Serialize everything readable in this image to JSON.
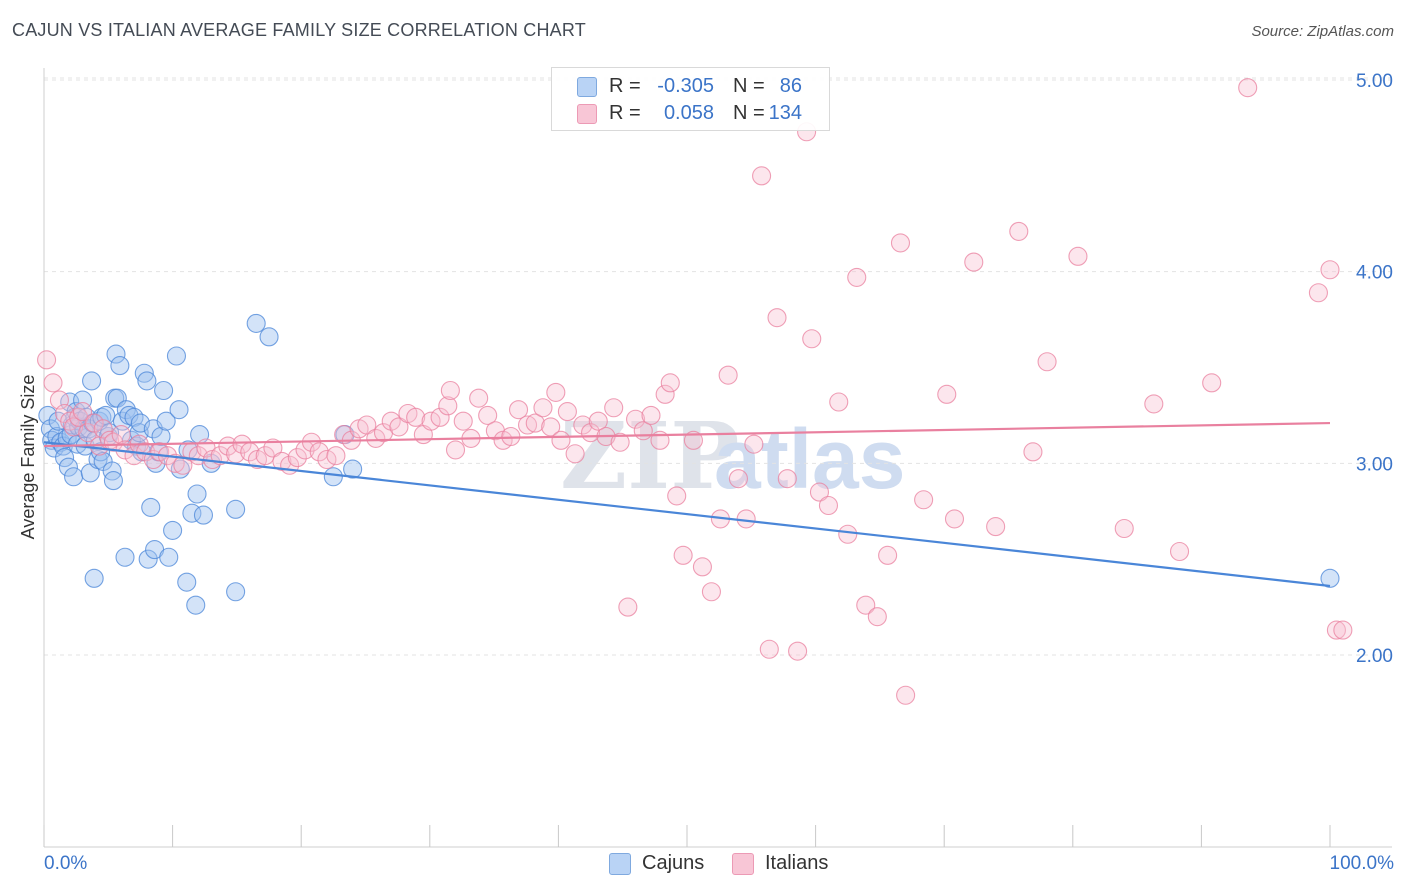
{
  "title": "CAJUN VS ITALIAN AVERAGE FAMILY SIZE CORRELATION CHART",
  "source": "Source: ZipAtlas.com",
  "watermark": {
    "zip": "ZIP",
    "atlas": "atlas"
  },
  "legend": {
    "r_label": "R =",
    "n_label": "N =",
    "rows": [
      {
        "name": "Cajuns",
        "r": "-0.305",
        "n": "86",
        "color": "#4a86d8"
      },
      {
        "name": "Italians",
        "r": "0.058",
        "n": "134",
        "color": "#e9809f"
      }
    ]
  },
  "bottom_legend": {
    "cajuns": "Cajuns",
    "italians": "Italians"
  },
  "chart_data": {
    "type": "scatter",
    "title": "CAJUN VS ITALIAN AVERAGE FAMILY SIZE CORRELATION CHART",
    "xlabel": "",
    "ylabel": "Average Family Size",
    "xlim": [
      0,
      100
    ],
    "ylim": [
      1.0,
      5.2
    ],
    "x_tick_labels": {
      "min": "0.0%",
      "max": "100.0%"
    },
    "y_ticks": [
      {
        "value": 2.0,
        "label": "2.00"
      },
      {
        "value": 3.0,
        "label": "3.00"
      },
      {
        "value": 4.0,
        "label": "4.00"
      },
      {
        "value": 5.0,
        "label": "5.00"
      }
    ],
    "series": [
      {
        "name": "Cajuns",
        "color": "#4a86d8",
        "fill": "rgba(157,194,240,0.45)",
        "trend": {
          "x": [
            0,
            100
          ],
          "y": [
            3.11,
            2.36
          ]
        },
        "points": [
          [
            0.3,
            3.25
          ],
          [
            0.5,
            3.18
          ],
          [
            0.6,
            3.12
          ],
          [
            0.8,
            3.08
          ],
          [
            1.0,
            3.14
          ],
          [
            1.1,
            3.22
          ],
          [
            1.3,
            3.11
          ],
          [
            1.5,
            3.09
          ],
          [
            1.6,
            3.03
          ],
          [
            1.8,
            3.13
          ],
          [
            1.9,
            2.98
          ],
          [
            2.0,
            3.32
          ],
          [
            2.1,
            3.15
          ],
          [
            2.2,
            3.2
          ],
          [
            2.3,
            2.93
          ],
          [
            2.4,
            3.24
          ],
          [
            2.5,
            3.27
          ],
          [
            2.6,
            3.1
          ],
          [
            2.7,
            3.19
          ],
          [
            2.8,
            3.22
          ],
          [
            3.0,
            3.33
          ],
          [
            3.1,
            3.18
          ],
          [
            3.2,
            3.09
          ],
          [
            3.3,
            3.24
          ],
          [
            3.5,
            3.18
          ],
          [
            3.6,
            2.95
          ],
          [
            3.7,
            3.43
          ],
          [
            3.8,
            3.21
          ],
          [
            3.9,
            2.4
          ],
          [
            4.0,
            3.12
          ],
          [
            4.2,
            3.02
          ],
          [
            4.3,
            3.22
          ],
          [
            4.4,
            3.06
          ],
          [
            4.5,
            3.24
          ],
          [
            4.6,
            3.01
          ],
          [
            4.8,
            3.25
          ],
          [
            5.0,
            3.14
          ],
          [
            5.1,
            3.16
          ],
          [
            5.3,
            2.96
          ],
          [
            5.4,
            2.91
          ],
          [
            5.5,
            3.34
          ],
          [
            5.6,
            3.57
          ],
          [
            5.7,
            3.34
          ],
          [
            5.9,
            3.51
          ],
          [
            6.1,
            3.22
          ],
          [
            6.3,
            2.51
          ],
          [
            6.4,
            3.28
          ],
          [
            6.6,
            3.25
          ],
          [
            6.8,
            3.12
          ],
          [
            7.0,
            3.24
          ],
          [
            7.2,
            3.09
          ],
          [
            7.4,
            3.16
          ],
          [
            7.5,
            3.21
          ],
          [
            7.6,
            3.06
          ],
          [
            7.8,
            3.47
          ],
          [
            8.0,
            3.43
          ],
          [
            8.1,
            2.5
          ],
          [
            8.3,
            2.77
          ],
          [
            8.5,
            3.18
          ],
          [
            8.6,
            2.55
          ],
          [
            8.7,
            3.0
          ],
          [
            8.9,
            3.06
          ],
          [
            9.1,
            3.14
          ],
          [
            9.3,
            3.38
          ],
          [
            9.5,
            3.22
          ],
          [
            9.7,
            2.51
          ],
          [
            10.0,
            2.65
          ],
          [
            10.3,
            3.56
          ],
          [
            10.5,
            3.28
          ],
          [
            10.6,
            2.97
          ],
          [
            11.1,
            2.38
          ],
          [
            11.2,
            3.07
          ],
          [
            11.5,
            2.74
          ],
          [
            11.8,
            2.26
          ],
          [
            11.9,
            2.84
          ],
          [
            12.1,
            3.15
          ],
          [
            12.4,
            2.73
          ],
          [
            13.0,
            3.0
          ],
          [
            14.9,
            2.33
          ],
          [
            14.9,
            2.76
          ],
          [
            16.5,
            3.73
          ],
          [
            17.5,
            3.66
          ],
          [
            22.5,
            2.93
          ],
          [
            23.4,
            3.15
          ],
          [
            24.0,
            2.97
          ],
          [
            100.0,
            2.4
          ]
        ]
      },
      {
        "name": "Italians",
        "color": "#e9809f",
        "fill": "rgba(248,192,210,0.40)",
        "trend": {
          "x": [
            0,
            100
          ],
          "y": [
            3.09,
            3.21
          ]
        },
        "points": [
          [
            0.2,
            3.54
          ],
          [
            0.7,
            3.42
          ],
          [
            1.2,
            3.33
          ],
          [
            1.6,
            3.26
          ],
          [
            2.0,
            3.22
          ],
          [
            2.3,
            3.19
          ],
          [
            2.7,
            3.24
          ],
          [
            3.0,
            3.27
          ],
          [
            3.4,
            3.16
          ],
          [
            3.9,
            3.21
          ],
          [
            4.3,
            3.09
          ],
          [
            4.6,
            3.18
          ],
          [
            5.1,
            3.12
          ],
          [
            5.4,
            3.11
          ],
          [
            6.0,
            3.15
          ],
          [
            6.3,
            3.07
          ],
          [
            7.0,
            3.04
          ],
          [
            7.4,
            3.1
          ],
          [
            7.9,
            3.06
          ],
          [
            8.5,
            3.02
          ],
          [
            9.0,
            3.06
          ],
          [
            9.6,
            3.04
          ],
          [
            10.2,
            3.0
          ],
          [
            10.8,
            2.99
          ],
          [
            11.5,
            3.06
          ],
          [
            12.0,
            3.04
          ],
          [
            12.6,
            3.08
          ],
          [
            13.1,
            3.02
          ],
          [
            13.7,
            3.04
          ],
          [
            14.3,
            3.09
          ],
          [
            14.9,
            3.05
          ],
          [
            15.4,
            3.1
          ],
          [
            16.0,
            3.06
          ],
          [
            16.6,
            3.02
          ],
          [
            17.2,
            3.04
          ],
          [
            17.8,
            3.08
          ],
          [
            18.5,
            3.01
          ],
          [
            19.1,
            2.99
          ],
          [
            19.7,
            3.03
          ],
          [
            20.3,
            3.07
          ],
          [
            20.8,
            3.11
          ],
          [
            21.4,
            3.06
          ],
          [
            22.0,
            3.02
          ],
          [
            22.7,
            3.04
          ],
          [
            23.3,
            3.15
          ],
          [
            23.9,
            3.12
          ],
          [
            24.5,
            3.18
          ],
          [
            25.1,
            3.2
          ],
          [
            25.8,
            3.13
          ],
          [
            26.4,
            3.16
          ],
          [
            27.0,
            3.22
          ],
          [
            27.6,
            3.19
          ],
          [
            28.3,
            3.26
          ],
          [
            28.9,
            3.24
          ],
          [
            29.5,
            3.15
          ],
          [
            30.1,
            3.22
          ],
          [
            30.8,
            3.24
          ],
          [
            31.4,
            3.3
          ],
          [
            31.6,
            3.38
          ],
          [
            32.0,
            3.07
          ],
          [
            32.6,
            3.22
          ],
          [
            33.2,
            3.13
          ],
          [
            33.8,
            3.34
          ],
          [
            34.5,
            3.25
          ],
          [
            35.1,
            3.17
          ],
          [
            35.7,
            3.12
          ],
          [
            36.3,
            3.14
          ],
          [
            36.9,
            3.28
          ],
          [
            37.6,
            3.2
          ],
          [
            38.2,
            3.21
          ],
          [
            38.8,
            3.29
          ],
          [
            39.4,
            3.19
          ],
          [
            39.8,
            3.37
          ],
          [
            40.2,
            3.12
          ],
          [
            40.7,
            3.27
          ],
          [
            41.3,
            3.05
          ],
          [
            41.9,
            3.2
          ],
          [
            42.5,
            3.16
          ],
          [
            43.1,
            3.22
          ],
          [
            43.7,
            3.14
          ],
          [
            44.3,
            3.29
          ],
          [
            44.8,
            3.11
          ],
          [
            45.4,
            2.25
          ],
          [
            46.0,
            3.23
          ],
          [
            46.6,
            3.17
          ],
          [
            47.2,
            3.25
          ],
          [
            47.9,
            3.12
          ],
          [
            48.3,
            3.36
          ],
          [
            48.7,
            3.42
          ],
          [
            49.2,
            2.83
          ],
          [
            49.7,
            2.52
          ],
          [
            50.5,
            3.12
          ],
          [
            51.2,
            2.46
          ],
          [
            51.9,
            2.33
          ],
          [
            52.6,
            2.71
          ],
          [
            53.2,
            3.46
          ],
          [
            54.0,
            2.92
          ],
          [
            54.6,
            2.71
          ],
          [
            55.2,
            3.1
          ],
          [
            55.8,
            4.5
          ],
          [
            56.4,
            2.03
          ],
          [
            57.0,
            3.76
          ],
          [
            57.8,
            2.92
          ],
          [
            58.6,
            2.02
          ],
          [
            59.3,
            4.73
          ],
          [
            59.7,
            3.65
          ],
          [
            60.3,
            2.85
          ],
          [
            61.0,
            2.78
          ],
          [
            61.8,
            3.32
          ],
          [
            62.5,
            2.63
          ],
          [
            63.2,
            3.97
          ],
          [
            63.9,
            2.26
          ],
          [
            64.8,
            2.2
          ],
          [
            65.6,
            2.52
          ],
          [
            66.6,
            4.15
          ],
          [
            67.0,
            1.79
          ],
          [
            68.4,
            2.81
          ],
          [
            70.2,
            3.36
          ],
          [
            70.8,
            2.71
          ],
          [
            72.3,
            4.05
          ],
          [
            74.0,
            2.67
          ],
          [
            75.8,
            4.21
          ],
          [
            76.9,
            3.06
          ],
          [
            78.0,
            3.53
          ],
          [
            80.4,
            4.08
          ],
          [
            84.0,
            2.66
          ],
          [
            86.3,
            3.31
          ],
          [
            88.3,
            2.54
          ],
          [
            90.8,
            3.42
          ],
          [
            93.6,
            4.96
          ],
          [
            99.1,
            3.89
          ],
          [
            100.0,
            4.01
          ],
          [
            100.5,
            2.13
          ],
          [
            101.0,
            2.13
          ]
        ]
      }
    ]
  }
}
